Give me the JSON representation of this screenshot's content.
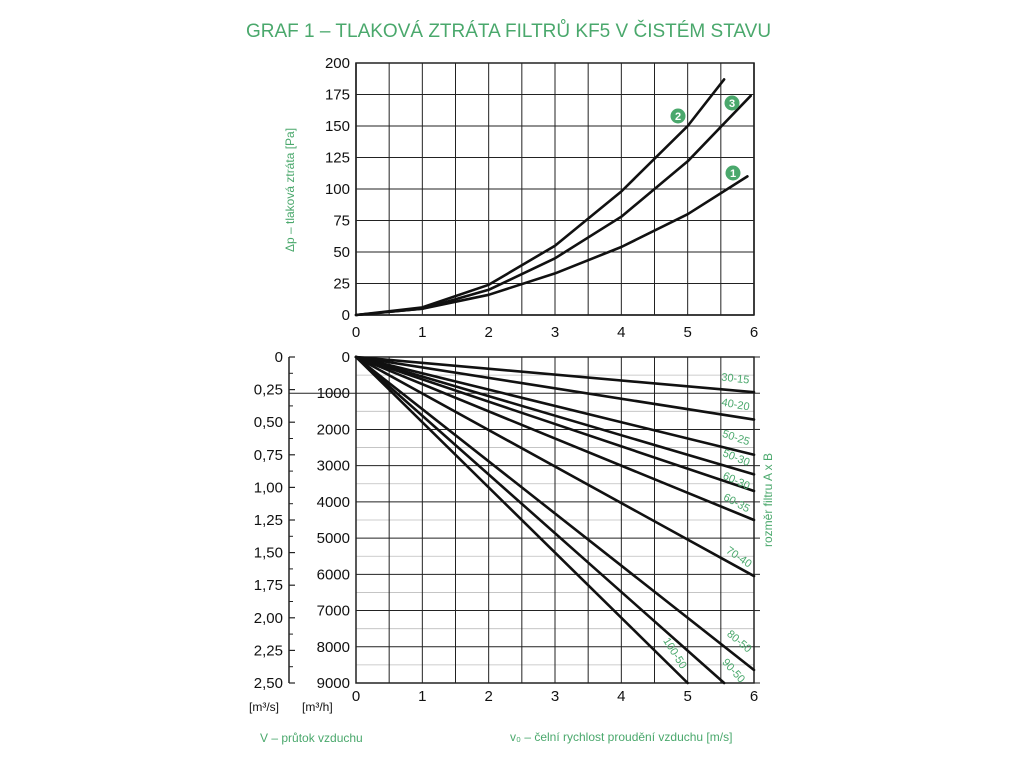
{
  "title": "GRAF 1 – TLAKOVÁ ZTRÁTA FILTRŮ KF5 V ČISTÉM STAVU",
  "colors": {
    "accent": "#4aa86c",
    "line": "#111111",
    "grid": "#222222",
    "minor": "#bdbdbd"
  },
  "chart_data": [
    {
      "type": "line",
      "xlabel": "",
      "ylabel": "Δp – tlaková ztráta [Pa]",
      "xlim": [
        0,
        6
      ],
      "ylim": [
        0,
        200
      ],
      "x_ticks": [
        "0",
        "1",
        "2",
        "3",
        "4",
        "5",
        "6"
      ],
      "y_ticks": [
        "0",
        "25",
        "50",
        "75",
        "100",
        "125",
        "150",
        "175",
        "200"
      ],
      "grid": true,
      "series": [
        {
          "name": "1",
          "x": [
            0,
            1,
            2,
            3,
            4,
            5,
            5.9
          ],
          "y": [
            0,
            5,
            16,
            33,
            54,
            80,
            110
          ]
        },
        {
          "name": "2",
          "x": [
            0,
            1,
            2,
            3,
            4,
            5,
            5.55
          ],
          "y": [
            0,
            6,
            24,
            55,
            98,
            150,
            187
          ]
        },
        {
          "name": "3",
          "x": [
            0,
            1,
            2,
            3,
            4,
            5,
            5.95
          ],
          "y": [
            0,
            5,
            20,
            45,
            78,
            122,
            174
          ]
        }
      ]
    },
    {
      "type": "line",
      "xlabel": "v₀ – čelní rychlost proudění vzduchu [m/s]",
      "ylabel": "V – průtok vzduchu",
      "right_label": "rozměr filtru A x B",
      "xlim": [
        0,
        6
      ],
      "ylim": [
        0,
        9000
      ],
      "y_inverted": true,
      "x_ticks": [
        "0",
        "1",
        "2",
        "3",
        "4",
        "5",
        "6"
      ],
      "y_ticks": [
        "0",
        "1000",
        "2000",
        "3000",
        "4000",
        "5000",
        "6000",
        "7000",
        "8000",
        "9000"
      ],
      "y2_ticks": [
        "0",
        "0,25",
        "0,50",
        "0,75",
        "1,00",
        "1,25",
        "1,50",
        "1,75",
        "2,00",
        "2,25",
        "2,50"
      ],
      "y_unit": "[m³/h]",
      "y2_unit": "[m³/s]",
      "grid": true,
      "series": [
        {
          "name": "30-15",
          "x": [
            0,
            6
          ],
          "y": [
            0,
            972
          ]
        },
        {
          "name": "40-20",
          "x": [
            0,
            6
          ],
          "y": [
            0,
            1728
          ]
        },
        {
          "name": "50-25",
          "x": [
            0,
            6
          ],
          "y": [
            0,
            2700
          ]
        },
        {
          "name": "50-30",
          "x": [
            0,
            6
          ],
          "y": [
            0,
            3240
          ]
        },
        {
          "name": "60-30",
          "x": [
            0,
            6
          ],
          "y": [
            0,
            3700
          ]
        },
        {
          "name": "60-35",
          "x": [
            0,
            6
          ],
          "y": [
            0,
            4500
          ]
        },
        {
          "name": "70-40",
          "x": [
            0,
            6
          ],
          "y": [
            0,
            6048
          ]
        },
        {
          "name": "80-50",
          "x": [
            0,
            6
          ],
          "y": [
            0,
            8640
          ]
        },
        {
          "name": "90-50",
          "x": [
            0,
            5.55
          ],
          "y": [
            0,
            9000
          ]
        },
        {
          "name": "100-50",
          "x": [
            0,
            5
          ],
          "y": [
            0,
            9000
          ]
        }
      ]
    }
  ],
  "labels": {
    "top_ylabel": "Δp – tlaková ztráta [Pa]",
    "bottom_xlabel": "v₀ – čelní rychlost proudění vzduchu [m/s]",
    "bottom_left_label": "V – průtok vzduchu",
    "unit_m3s": "[m³/s]",
    "unit_m3h": "[m³/h]",
    "right_label": "rozměr filtru A x B"
  }
}
